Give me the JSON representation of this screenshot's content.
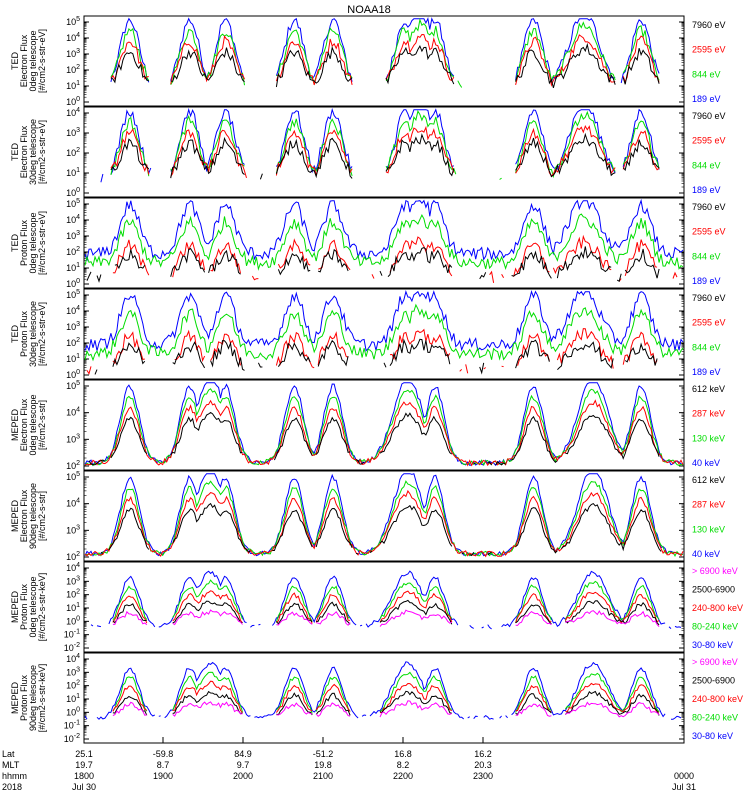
{
  "chart_data": {
    "type": "line",
    "title": "NOAA18",
    "panels": [
      {
        "instrument": "TED",
        "ylabel": [
          "Electron Flux",
          "0deg telescope",
          "[#/cm2-s-str-eV]"
        ],
        "yticks": [
          "10^0",
          "10^1",
          "10^2",
          "10^3",
          "10^4",
          "10^5"
        ],
        "legend": [
          {
            "label": "7960 eV",
            "color": "#000000"
          },
          {
            "label": "2595 eV",
            "color": "#ff0000"
          },
          {
            "label": "844 eV",
            "color": "#00dd00"
          },
          {
            "label": "189 eV",
            "color": "#0000ff"
          }
        ]
      },
      {
        "instrument": "TED",
        "ylabel": [
          "Electron Flux",
          "30deg telescope",
          "[#/cm2-s-str-eV]"
        ],
        "yticks": [
          "10^0",
          "10^1",
          "10^2",
          "10^3",
          "10^4"
        ],
        "legend": [
          {
            "label": "7960 eV",
            "color": "#000000"
          },
          {
            "label": "2595 eV",
            "color": "#ff0000"
          },
          {
            "label": "844 eV",
            "color": "#00dd00"
          },
          {
            "label": "189 eV",
            "color": "#0000ff"
          }
        ]
      },
      {
        "instrument": "TED",
        "ylabel": [
          "Proton Flux",
          "0deg telescope",
          "[#/cm2-s-str-eV]"
        ],
        "yticks": [
          "10^0",
          "10^1",
          "10^2",
          "10^3",
          "10^4",
          "10^5"
        ],
        "legend": [
          {
            "label": "7960 eV",
            "color": "#000000"
          },
          {
            "label": "2595 eV",
            "color": "#ff0000"
          },
          {
            "label": "844 eV",
            "color": "#00dd00"
          },
          {
            "label": "189 eV",
            "color": "#0000ff"
          }
        ]
      },
      {
        "instrument": "TED",
        "ylabel": [
          "Proton Flux",
          "30deg telescope",
          "[#/cm2-s-str-eV]"
        ],
        "yticks": [
          "10^0",
          "10^1",
          "10^2",
          "10^3",
          "10^4",
          "10^5"
        ],
        "legend": [
          {
            "label": "7960 eV",
            "color": "#000000"
          },
          {
            "label": "2595 eV",
            "color": "#ff0000"
          },
          {
            "label": "844 eV",
            "color": "#00dd00"
          },
          {
            "label": "189 eV",
            "color": "#0000ff"
          }
        ]
      },
      {
        "instrument": "MEPED",
        "ylabel": [
          "Electron Flux",
          "0deg telescope",
          "[#/cm2-s-str]"
        ],
        "yticks": [
          "10^2",
          "10^3",
          "10^4",
          "10^5"
        ],
        "legend": [
          {
            "label": "612 keV",
            "color": "#000000"
          },
          {
            "label": "287 keV",
            "color": "#ff0000"
          },
          {
            "label": "130 keV",
            "color": "#00dd00"
          },
          {
            "label": "40 keV",
            "color": "#0000ff"
          }
        ]
      },
      {
        "instrument": "MEPED",
        "ylabel": [
          "Electron Flux",
          "90deg telescope",
          "[#/cm2-s-str]"
        ],
        "yticks": [
          "10^2",
          "10^3",
          "10^4",
          "10^5"
        ],
        "legend": [
          {
            "label": "612 keV",
            "color": "#000000"
          },
          {
            "label": "287 keV",
            "color": "#ff0000"
          },
          {
            "label": "130 keV",
            "color": "#00dd00"
          },
          {
            "label": "40 keV",
            "color": "#0000ff"
          }
        ]
      },
      {
        "instrument": "MEPED",
        "ylabel": [
          "Proton Flux",
          "0deg telescope",
          "[#/cm2-s-str-keV]"
        ],
        "yticks": [
          "10^-2",
          "10^-1",
          "10^0",
          "10^1",
          "10^2",
          "10^3",
          "10^4"
        ],
        "legend": [
          {
            "label": "> 6900 keV",
            "color": "#ff00ff"
          },
          {
            "label": "2500-6900",
            "color": "#000000"
          },
          {
            "label": "240-800 keV",
            "color": "#ff0000"
          },
          {
            "label": "80-240 keV",
            "color": "#00dd00"
          },
          {
            "label": "30-80 keV",
            "color": "#0000ff"
          }
        ]
      },
      {
        "instrument": "MEPED",
        "ylabel": [
          "Proton Flux",
          "90deg telescope",
          "[#/cm2-s-str-keV]"
        ],
        "yticks": [
          "10^-2",
          "10^-1",
          "10^0",
          "10^1",
          "10^2",
          "10^3",
          "10^4"
        ],
        "legend": [
          {
            "label": "> 6900 keV",
            "color": "#ff00ff"
          },
          {
            "label": "2500-6900",
            "color": "#000000"
          },
          {
            "label": "240-800 keV",
            "color": "#ff0000"
          },
          {
            "label": "80-240 keV",
            "color": "#00dd00"
          },
          {
            "label": "30-80 keV",
            "color": "#0000ff"
          }
        ]
      }
    ],
    "xaxis": {
      "row_labels": [
        "Lat",
        "MLT",
        "hhmm",
        "2018"
      ],
      "columns": [
        [
          "25.1",
          "19.7",
          "1800",
          "Jul 30"
        ],
        [
          "-59.8",
          "8.7",
          "1900",
          ""
        ],
        [
          "84.9",
          "9.7",
          "2000",
          ""
        ],
        [
          "-51.2",
          "19.8",
          "2100",
          ""
        ],
        [
          "16.8",
          "8.2",
          "2200",
          ""
        ],
        [
          "16.2",
          "20.3",
          "2300",
          ""
        ],
        [
          "",
          "",
          "0000",
          "Jul 31"
        ]
      ]
    },
    "grid": false
  }
}
